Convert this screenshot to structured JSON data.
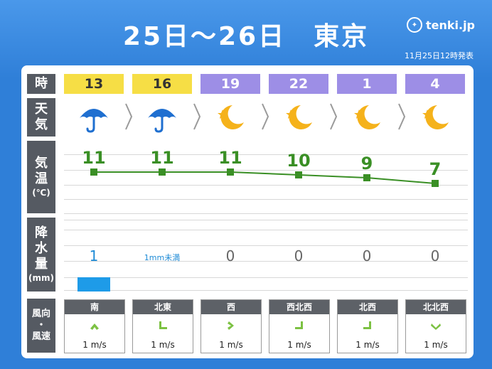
{
  "title": "25日～26日　東京",
  "logo_text": "tenki.jp",
  "issued": "11月25日12時発表",
  "labels": {
    "time": "時",
    "weather_1": "天",
    "weather_2": "気",
    "temp_1": "気",
    "temp_2": "温",
    "temp_unit": "(℃)",
    "precip_1": "降",
    "precip_2": "水",
    "precip_3": "量",
    "precip_unit": "(mm)",
    "wind_1": "風向",
    "wind_2": "・",
    "wind_3": "風速"
  },
  "columns": [
    {
      "hour": "13",
      "period": "day",
      "weather": "umbrella-icon",
      "temp": "11",
      "precip": "1",
      "precip_value": 1,
      "wind_dir": "南",
      "wind_speed": "1 m/s",
      "wind_arrow": "up"
    },
    {
      "hour": "16",
      "period": "day",
      "weather": "umbrella-icon",
      "temp": "11",
      "precip": "1mm未満",
      "precip_value": 0,
      "wind_dir": "北東",
      "wind_speed": "1 m/s",
      "wind_arrow": "down-left"
    },
    {
      "hour": "19",
      "period": "night",
      "weather": "moon-icon",
      "temp": "11",
      "precip": "0",
      "precip_value": 0,
      "wind_dir": "西",
      "wind_speed": "1 m/s",
      "wind_arrow": "right"
    },
    {
      "hour": "22",
      "period": "night",
      "weather": "moon-icon",
      "temp": "10",
      "precip": "0",
      "precip_value": 0,
      "wind_dir": "西北西",
      "wind_speed": "1 m/s",
      "wind_arrow": "down-right"
    },
    {
      "hour": "1",
      "period": "night",
      "weather": "moon-icon",
      "temp": "9",
      "precip": "0",
      "precip_value": 0,
      "wind_dir": "北西",
      "wind_speed": "1 m/s",
      "wind_arrow": "down-right"
    },
    {
      "hour": "4",
      "period": "night",
      "weather": "moon-icon",
      "temp": "7",
      "precip": "0",
      "precip_value": 0,
      "wind_dir": "北北西",
      "wind_speed": "1 m/s",
      "wind_arrow": "down"
    }
  ],
  "colors": {
    "background": "#2f7fd8",
    "day": "#f6de45",
    "night": "#9d8ee6",
    "temp_line": "#3a8f25",
    "precip_bar": "#1e9be8"
  }
}
